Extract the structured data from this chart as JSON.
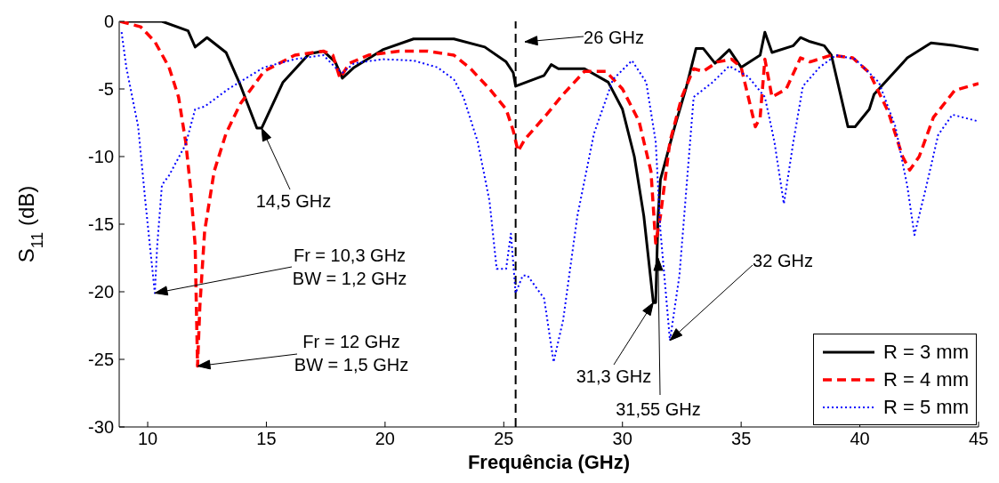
{
  "chart_data": {
    "type": "line",
    "xlabel": "Frequência (GHz)",
    "ylabel": "S$_{11}$ (dB)",
    "xlim": [
      8.8,
      45
    ],
    "ylim": [
      -30,
      0
    ],
    "xticks": [
      10,
      15,
      20,
      25,
      30,
      35,
      40,
      45
    ],
    "yticks": [
      -30,
      -25,
      -20,
      -15,
      -10,
      -5,
      0
    ],
    "grid": false,
    "legend": "bottom right",
    "marker": "none",
    "series": [
      {
        "name": "R = 3 mm",
        "color": "#000000",
        "line_style": "solid",
        "x": [
          8.84,
          10.6,
          11.7,
          12.0,
          12.5,
          13.3,
          13.9,
          14.6,
          14.8,
          15.7,
          16.8,
          17.4,
          17.9,
          18.2,
          18.7,
          19.9,
          21.2,
          22.9,
          24.2,
          25.1,
          25.4,
          25.5,
          25.8,
          26.7,
          27.0,
          27.3,
          28.4,
          29.4,
          30.0,
          30.5,
          30.9,
          31.3,
          31.4,
          31.5,
          31.6,
          32.2,
          32.7,
          33.1,
          33.4,
          33.9,
          34.5,
          35.0,
          35.8,
          36.0,
          36.3,
          37.2,
          37.5,
          37.9,
          38.5,
          38.8,
          39.5,
          39.8,
          40.4,
          40.6,
          42.0,
          43.0,
          44.0,
          45.0
        ],
        "values": [
          0,
          0,
          -0.7,
          -1.9,
          -1.2,
          -2.3,
          -4.7,
          -7.9,
          -7.9,
          -4.5,
          -2.4,
          -2.2,
          -3.0,
          -4.2,
          -3.4,
          -2.1,
          -1.3,
          -1.3,
          -1.9,
          -3.0,
          -3.8,
          -4.8,
          -4.6,
          -4.0,
          -3.2,
          -3.5,
          -3.5,
          -4.5,
          -6.5,
          -10.0,
          -14.4,
          -20.8,
          -20.8,
          -14.4,
          -11.7,
          -7.8,
          -4.8,
          -2.0,
          -2.0,
          -3.1,
          -2.1,
          -3.4,
          -2.5,
          -0.8,
          -2.3,
          -1.8,
          -1.2,
          -1.5,
          -1.8,
          -2.5,
          -7.8,
          -7.8,
          -6.5,
          -5.4,
          -2.7,
          -1.6,
          -1.8,
          -2.1
        ]
      },
      {
        "name": "R = 4 mm",
        "color": "#ff0000",
        "line_style": "dashed",
        "x": [
          8.84,
          9.7,
          10.3,
          10.9,
          11.3,
          11.6,
          11.8,
          12.0,
          12.1,
          12.2,
          12.4,
          12.8,
          13.3,
          13.9,
          14.9,
          16.2,
          17.4,
          17.8,
          18.1,
          18.5,
          19.3,
          20.6,
          21.8,
          22.9,
          23.6,
          24.4,
          25.1,
          25.4,
          25.6,
          25.9,
          26.8,
          27.5,
          28.4,
          29.3,
          30.0,
          30.7,
          31.2,
          31.4,
          31.6,
          32.0,
          32.5,
          33.0,
          33.4,
          34.0,
          34.6,
          35.0,
          35.3,
          35.6,
          35.8,
          36.0,
          36.3,
          36.9,
          37.5,
          37.9,
          38.8,
          39.7,
          40.4,
          41.2,
          41.8,
          42.1,
          42.5,
          43.1,
          44.0,
          45.0
        ],
        "values": [
          0,
          -0.4,
          -1.5,
          -3.4,
          -5.6,
          -8.9,
          -12.2,
          -16.6,
          -25.5,
          -21.0,
          -15.5,
          -11.1,
          -8.3,
          -6.1,
          -3.7,
          -2.5,
          -2.2,
          -2.5,
          -4.2,
          -3.1,
          -2.5,
          -2.2,
          -2.2,
          -2.5,
          -3.5,
          -5.0,
          -6.5,
          -8.1,
          -9.6,
          -8.7,
          -6.9,
          -5.4,
          -3.7,
          -3.7,
          -5.0,
          -7.4,
          -11.1,
          -16.4,
          -14.4,
          -8.9,
          -5.6,
          -3.5,
          -3.7,
          -3.0,
          -2.8,
          -3.4,
          -5.6,
          -7.8,
          -7.1,
          -2.8,
          -5.6,
          -5.0,
          -2.7,
          -3.0,
          -2.5,
          -2.7,
          -3.8,
          -6.7,
          -10.0,
          -11.0,
          -10.0,
          -7.1,
          -5.1,
          -4.6
        ]
      },
      {
        "name": "R = 5 mm",
        "color": "#0000ff",
        "line_style": "dotted",
        "x": [
          8.9,
          9.1,
          9.6,
          9.9,
          10.3,
          10.4,
          10.6,
          10.9,
          11.6,
          12.0,
          12.4,
          13.4,
          14.9,
          16.2,
          17.4,
          17.9,
          18.2,
          18.7,
          19.9,
          21.2,
          22.2,
          22.9,
          23.3,
          23.9,
          24.4,
          24.7,
          25.1,
          25.3,
          25.5,
          25.8,
          26.0,
          26.7,
          27.1,
          27.5,
          28.1,
          28.8,
          29.6,
          30.4,
          31.0,
          31.4,
          31.6,
          32.0,
          32.4,
          32.8,
          33.0,
          33.8,
          34.5,
          35.3,
          36.0,
          36.4,
          36.8,
          37.2,
          37.6,
          38.3,
          39.0,
          39.8,
          40.8,
          41.5,
          42.0,
          42.3,
          42.8,
          43.3,
          43.9,
          45.0
        ],
        "values": [
          -0.8,
          -3.4,
          -7.8,
          -13.3,
          -20.1,
          -16.6,
          -12.1,
          -11.4,
          -9.1,
          -6.5,
          -6.3,
          -5.0,
          -3.4,
          -2.8,
          -2.5,
          -3.4,
          -3.8,
          -3.1,
          -2.8,
          -2.9,
          -3.4,
          -4.3,
          -5.6,
          -8.9,
          -13.3,
          -18.3,
          -18.3,
          -15.7,
          -20.1,
          -18.8,
          -18.8,
          -20.5,
          -25.2,
          -22.1,
          -14.4,
          -8.3,
          -4.3,
          -2.9,
          -4.5,
          -8.9,
          -15.5,
          -23.6,
          -18.8,
          -10.0,
          -5.6,
          -4.5,
          -3.3,
          -4.1,
          -5.6,
          -8.9,
          -13.5,
          -8.9,
          -4.8,
          -3.4,
          -2.5,
          -2.8,
          -4.5,
          -7.8,
          -12.2,
          -15.8,
          -12.2,
          -8.4,
          -6.9,
          -7.4
        ]
      }
    ],
    "ref_lines": [
      {
        "axis": "x",
        "value": 25.5,
        "color": "#000000",
        "line_style": "dashed"
      }
    ],
    "annotations": [
      "26 GHz",
      {
        "text": "14,5 GHz",
        "x": 14.8,
        "y": -7.9
      },
      {
        "text": "Fr = 10,3 GHz\nBW = 1,2 GHz",
        "x": 10.3,
        "y": -20.1
      },
      {
        "text": "Fr = 12 GHz\nBW = 1,5 GHz",
        "x": 12.1,
        "y": -25.5
      },
      {
        "text": "31,3 GHz",
        "x": 31.3,
        "y": -20.8
      },
      {
        "text": "31,55 GHz",
        "x": 31.5,
        "y": -17.5
      },
      {
        "text": "32 GHz",
        "x": 32.0,
        "y": -23.6
      }
    ]
  }
}
